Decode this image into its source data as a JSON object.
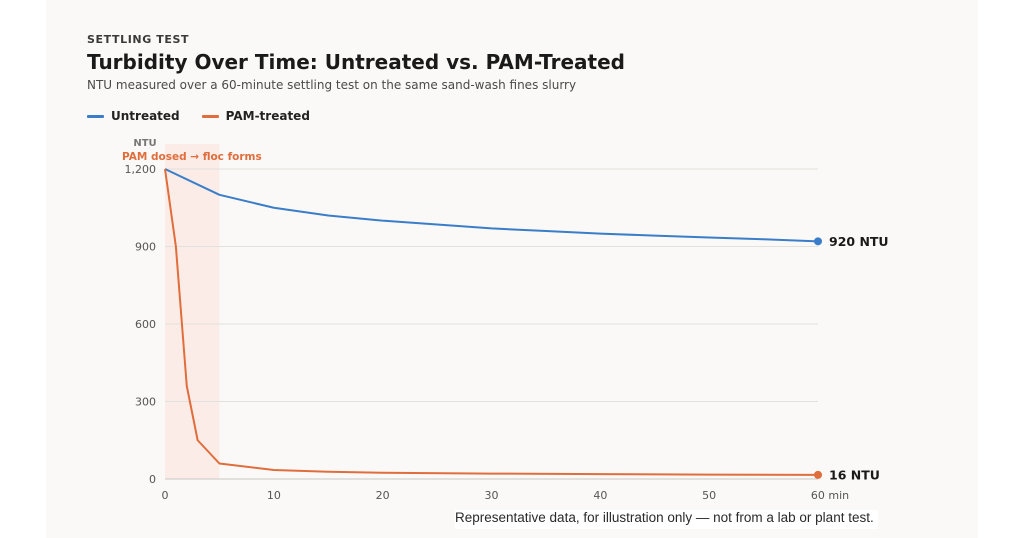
{
  "header": {
    "eyebrow": "SETTLING TEST",
    "title": "Turbidity Over Time: Untreated vs. PAM-Treated",
    "subtitle": "NTU measured over a 60-minute settling test on the same sand-wash fines slurry"
  },
  "footnote": "Representative data, for illustration only — not from a lab or plant test.",
  "colors": {
    "untreated": "#3a7dc9",
    "treated": "#e06d3c",
    "shade": "#fbe7e2",
    "grid": "#e3e1dd",
    "annotation": "#e06d3c"
  },
  "chart_data": {
    "type": "line",
    "ylabel": "NTU",
    "xlim": [
      0,
      60
    ],
    "ylim": [
      0,
      1200
    ],
    "x_ticks": [
      "0",
      "10",
      "20",
      "30",
      "40",
      "50",
      "60 min"
    ],
    "y_ticks": [
      "0",
      "300",
      "600",
      "900",
      "1,200"
    ],
    "grid": true,
    "legend": "top-left",
    "shaded_region": {
      "x_start": 0,
      "x_end": 5,
      "label": "PAM dosed → floc forms"
    },
    "series": [
      {
        "name": "Untreated",
        "x": [
          0,
          5,
          10,
          15,
          20,
          25,
          30,
          35,
          40,
          45,
          50,
          55,
          60
        ],
        "y": [
          1200,
          1100,
          1050,
          1020,
          1000,
          985,
          970,
          960,
          950,
          942,
          935,
          928,
          920
        ],
        "end_label": "920 NTU"
      },
      {
        "name": "PAM-treated",
        "x": [
          0,
          1,
          2,
          3,
          5,
          10,
          15,
          20,
          30,
          40,
          50,
          60
        ],
        "y": [
          1200,
          900,
          360,
          150,
          60,
          35,
          28,
          24,
          21,
          19,
          17,
          16
        ],
        "end_label": "16 NTU"
      }
    ]
  }
}
